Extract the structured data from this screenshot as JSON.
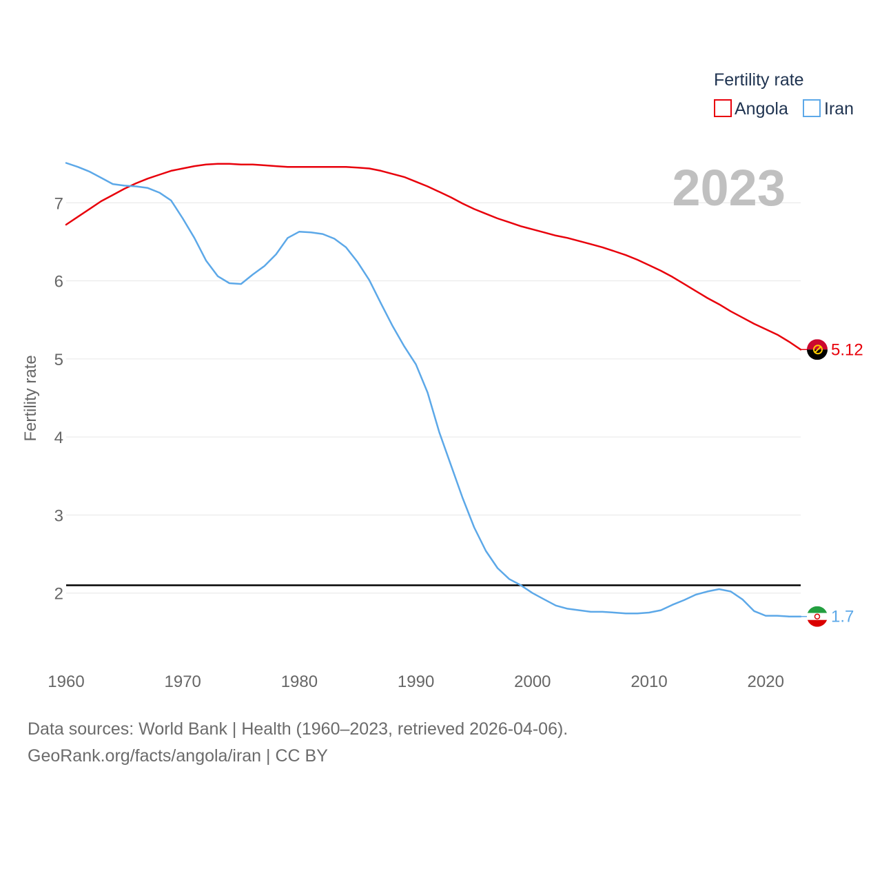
{
  "chart_data": {
    "type": "line",
    "legend_title": "Fertility rate",
    "ylabel": "Fertility rate",
    "year_label": "2023",
    "xlim": [
      1960,
      2023
    ],
    "ylim": [
      1.3,
      7.7
    ],
    "x_ticks": [
      "1960",
      "1970",
      "1980",
      "1990",
      "2000",
      "2010",
      "2020"
    ],
    "y_ticks": [
      "2",
      "3",
      "4",
      "5",
      "6",
      "7"
    ],
    "reference_line": 2.1,
    "x": [
      1960,
      1961,
      1962,
      1963,
      1964,
      1965,
      1966,
      1967,
      1968,
      1969,
      1970,
      1971,
      1972,
      1973,
      1974,
      1975,
      1976,
      1977,
      1978,
      1979,
      1980,
      1981,
      1982,
      1983,
      1984,
      1985,
      1986,
      1987,
      1988,
      1989,
      1990,
      1991,
      1992,
      1993,
      1994,
      1995,
      1996,
      1997,
      1998,
      1999,
      2000,
      2001,
      2002,
      2003,
      2004,
      2005,
      2006,
      2007,
      2008,
      2009,
      2010,
      2011,
      2012,
      2013,
      2014,
      2015,
      2016,
      2017,
      2018,
      2019,
      2020,
      2021,
      2022,
      2023
    ],
    "series": [
      {
        "name": "Angola",
        "color": "#e8000b",
        "end_label": "5.12",
        "values": [
          6.72,
          6.82,
          6.92,
          7.02,
          7.1,
          7.18,
          7.25,
          7.31,
          7.36,
          7.41,
          7.44,
          7.47,
          7.49,
          7.5,
          7.5,
          7.49,
          7.49,
          7.48,
          7.47,
          7.46,
          7.46,
          7.46,
          7.46,
          7.46,
          7.46,
          7.45,
          7.44,
          7.41,
          7.37,
          7.33,
          7.27,
          7.21,
          7.14,
          7.07,
          6.99,
          6.92,
          6.86,
          6.8,
          6.75,
          6.7,
          6.66,
          6.62,
          6.58,
          6.55,
          6.51,
          6.47,
          6.43,
          6.38,
          6.33,
          6.27,
          6.2,
          6.13,
          6.05,
          5.96,
          5.87,
          5.78,
          5.7,
          5.61,
          5.53,
          5.45,
          5.38,
          5.31,
          5.22,
          5.12
        ]
      },
      {
        "name": "Iran",
        "color": "#5ca8e8",
        "end_label": "1.7",
        "values": [
          7.51,
          7.46,
          7.4,
          7.32,
          7.24,
          7.22,
          7.21,
          7.19,
          7.13,
          7.03,
          6.8,
          6.55,
          6.26,
          6.06,
          5.97,
          5.96,
          6.08,
          6.19,
          6.34,
          6.55,
          6.63,
          6.62,
          6.6,
          6.54,
          6.43,
          6.24,
          6.01,
          5.71,
          5.42,
          5.16,
          4.93,
          4.57,
          4.06,
          3.64,
          3.22,
          2.84,
          2.54,
          2.32,
          2.18,
          2.1,
          2.0,
          1.92,
          1.84,
          1.8,
          1.78,
          1.76,
          1.76,
          1.75,
          1.74,
          1.74,
          1.75,
          1.78,
          1.85,
          1.91,
          1.98,
          2.02,
          2.05,
          2.02,
          1.92,
          1.77,
          1.71,
          1.71,
          1.7,
          1.7
        ]
      }
    ]
  },
  "footer": {
    "line1": "Data sources: World Bank | Health (1960–2023, retrieved 2026-04-06).",
    "line2": "GeoRank.org/facts/angola/iran | CC BY"
  }
}
